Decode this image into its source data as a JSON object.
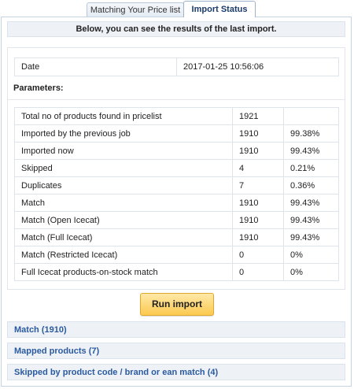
{
  "tabs": [
    {
      "label": "Matching Your Price list",
      "active": false
    },
    {
      "label": "Import Status",
      "active": true
    }
  ],
  "header_text": "Below, you can see the results of the last import.",
  "date": {
    "label": "Date",
    "value": "2017-01-25 10:56:06"
  },
  "parameters_title": "Parameters:",
  "rows": [
    {
      "label": "Total no of products found in pricelist",
      "count": "1921",
      "percent": ""
    },
    {
      "label": "Imported by the previous job",
      "count": "1910",
      "percent": "99.38%"
    },
    {
      "label": "Imported now",
      "count": "1910",
      "percent": "99.43%"
    },
    {
      "label": "Skipped",
      "count": "4",
      "percent": "0.21%"
    },
    {
      "label": "Duplicates",
      "count": "7",
      "percent": "0.36%"
    },
    {
      "label": "Match",
      "count": "1910",
      "percent": "99.43%"
    },
    {
      "label": "Match (Open Icecat)",
      "count": "1910",
      "percent": "99.43%"
    },
    {
      "label": "Match (Full Icecat)",
      "count": "1910",
      "percent": "99.43%"
    },
    {
      "label": "Match (Restricted Icecat)",
      "count": "0",
      "percent": "0%"
    },
    {
      "label": "Full Icecat products-on-stock match",
      "count": "0",
      "percent": "0%"
    }
  ],
  "run_button": "Run import",
  "accordions": [
    {
      "label": "Match (1910)"
    },
    {
      "label": "Mapped products (7)"
    },
    {
      "label": "Skipped by product code / brand or ean match (4)"
    }
  ],
  "colors": {
    "accent_link": "#2a5aa0",
    "button": "#fbc94f",
    "panel_bar": "#eef2f7"
  }
}
